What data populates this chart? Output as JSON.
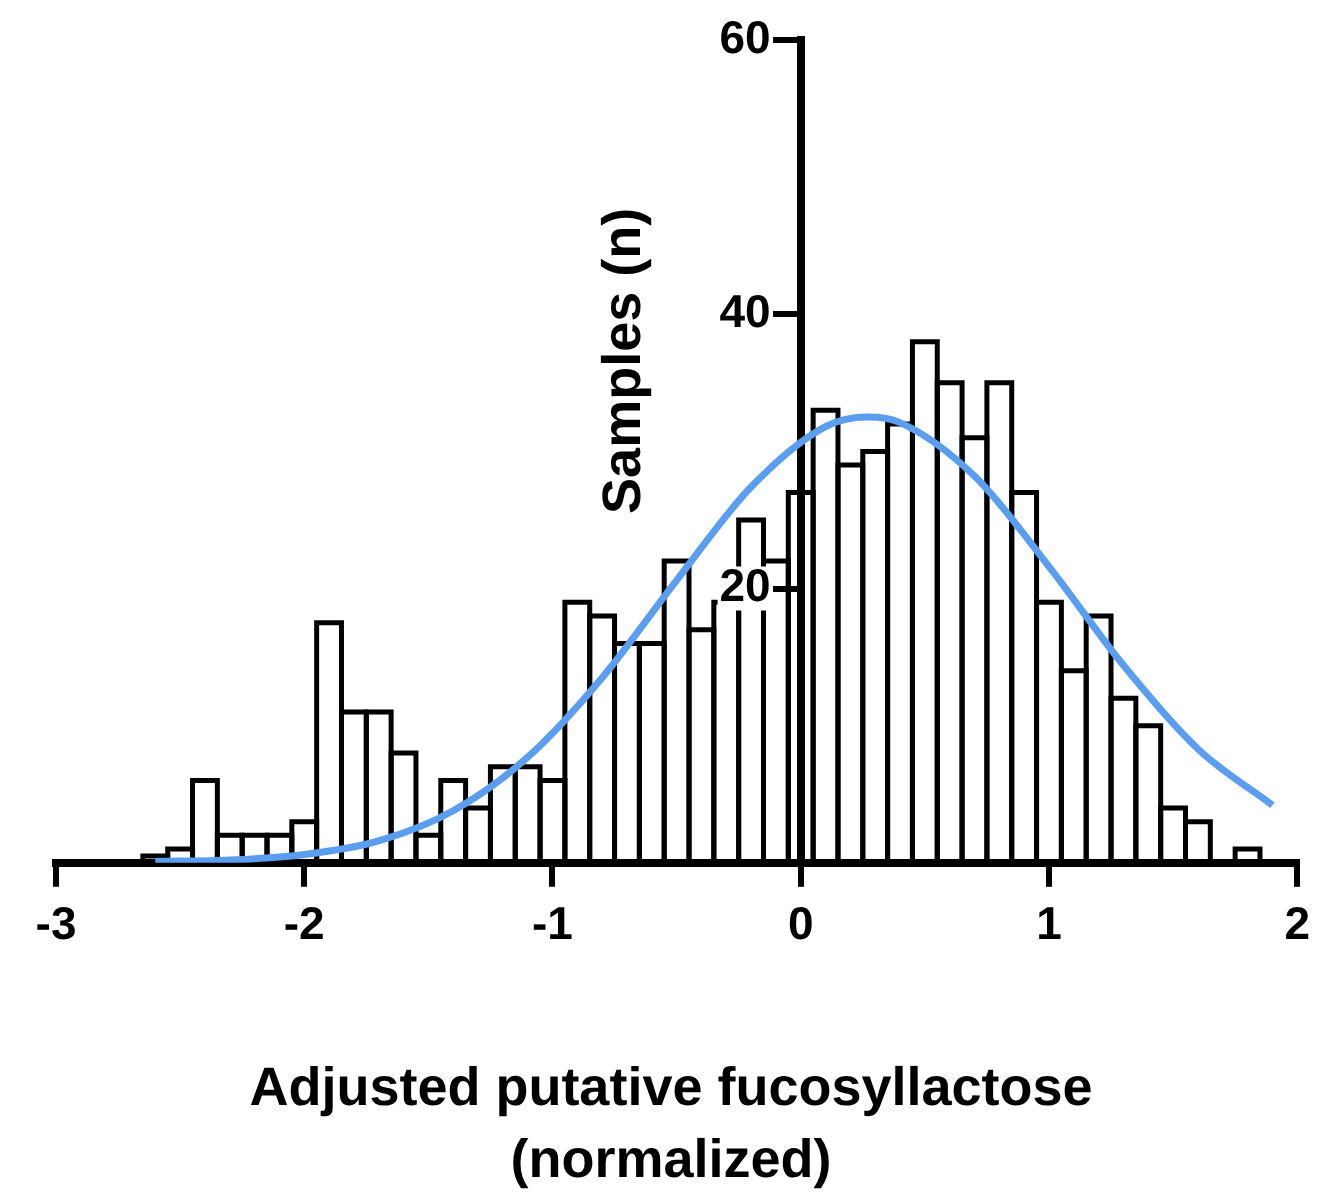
{
  "chart_data": {
    "type": "histogram",
    "xlabel": "Adjusted putative fucosyllactose\n(normalized)",
    "ylabel": "Samples (n)",
    "bins": [
      -2.65,
      -2.55,
      -2.45,
      -2.35,
      -2.25,
      -2.15,
      -2.05,
      -1.95,
      -1.85,
      -1.75,
      -1.65,
      -1.55,
      -1.45,
      -1.35,
      -1.25,
      -1.15,
      -1.05,
      -0.95,
      -0.85,
      -0.75,
      -0.65,
      -0.55,
      -0.45,
      -0.35,
      -0.25,
      -0.15,
      -0.05,
      0.05,
      0.15,
      0.25,
      0.35,
      0.45,
      0.55,
      0.65,
      0.75,
      0.85,
      0.95,
      1.05,
      1.15,
      1.25,
      1.35,
      1.45,
      1.55,
      1.65,
      1.75,
      1.85
    ],
    "values": [
      0.5,
      1,
      6,
      2,
      2,
      2,
      3,
      17.5,
      11,
      11,
      8,
      2,
      6,
      4,
      7,
      7,
      6,
      19,
      18,
      16,
      16,
      22,
      17,
      19,
      25,
      22,
      27,
      33,
      29,
      30,
      32,
      38,
      35,
      31,
      35,
      27,
      19,
      14,
      18,
      12,
      10,
      4,
      3,
      0,
      1
    ],
    "color": "#000000",
    "series": [
      {
        "type": "line",
        "color": "#5b9ef0",
        "x": [
          -2.6,
          -2.3,
          -2.0,
          -1.7,
          -1.4,
          -1.1,
          -0.8,
          -0.5,
          -0.2,
          0.1,
          0.27,
          0.4,
          0.7,
          1.0,
          1.3,
          1.6,
          1.9
        ],
        "values": [
          0.1,
          0.2,
          0.6,
          1.6,
          3.8,
          7.7,
          13.5,
          20.6,
          27.4,
          31.8,
          32.5,
          32.1,
          28.2,
          21.6,
          14.4,
          8.3,
          4.2
        ]
      }
    ],
    "xlim": [
      -3,
      2
    ],
    "xticks": [
      -3,
      -2,
      -1,
      0,
      1,
      2
    ],
    "ylim": [
      0,
      60
    ],
    "yticks": [
      {
        "value": 0,
        "label": null
      },
      20,
      40,
      60
    ],
    "grid": false,
    "legend": false,
    "marker": "none",
    "line_style": "solid"
  }
}
